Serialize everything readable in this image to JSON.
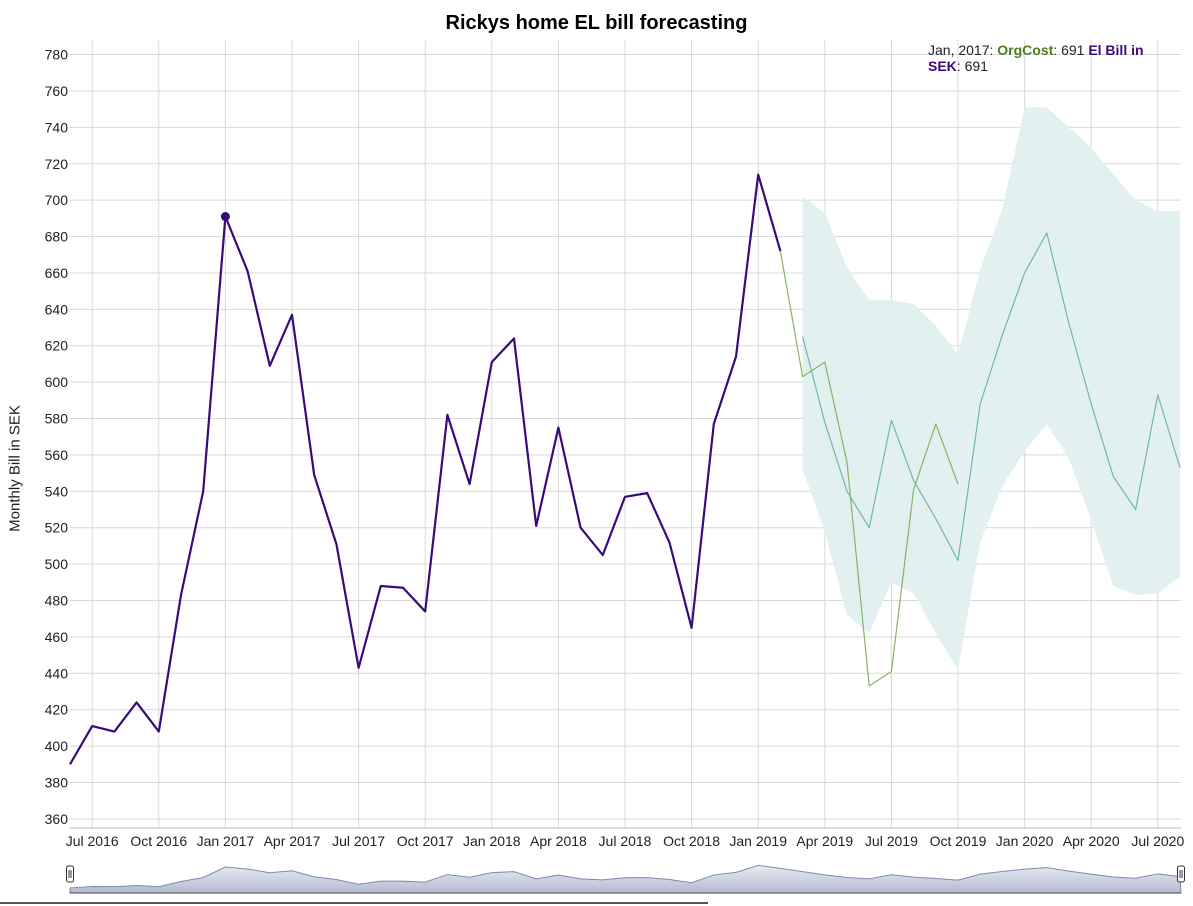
{
  "legend": {
    "date": "Jan, 2017",
    "series1_name": "OrgCost",
    "series1_value": "691",
    "series2_name": "El Bill in SEK",
    "series2_value": "691",
    "series2_name_line1": "El Bill in",
    "series2_name_line2": "SEK"
  },
  "colors": {
    "actual": "#3a0a7a",
    "orgcost": "#86b36a",
    "forecast": "#6fb7ae",
    "band": "#e2f1ef",
    "grid": "#d9d9d9",
    "navigator": "#a9b3c9"
  },
  "chart_data": {
    "type": "line",
    "title": "Rickys home EL bill forecasting",
    "xlabel": "",
    "ylabel": "Monthly Bill in SEK",
    "ylim": [
      355,
      788
    ],
    "y_ticks": [
      360,
      380,
      400,
      420,
      440,
      460,
      480,
      500,
      520,
      540,
      560,
      580,
      600,
      620,
      640,
      660,
      680,
      700,
      720,
      740,
      760,
      780
    ],
    "x_ticks": [
      "Jul 2016",
      "Oct 2016",
      "Jan 2017",
      "Apr 2017",
      "Jul 2017",
      "Oct 2017",
      "Jan 2018",
      "Apr 2018",
      "Jul 2018",
      "Oct 2018",
      "Jan 2019",
      "Apr 2019",
      "Jul 2019",
      "Oct 2019",
      "Jan 2020",
      "Apr 2020",
      "Jul 2020"
    ],
    "grid": true,
    "legend_position": "top-right",
    "highlight": {
      "x": "2017-01",
      "value": 691
    },
    "series": [
      {
        "name": "El Bill in SEK",
        "x": [
          "2016-06",
          "2016-07",
          "2016-08",
          "2016-09",
          "2016-10",
          "2016-11",
          "2016-12",
          "2017-01",
          "2017-02",
          "2017-03",
          "2017-04",
          "2017-05",
          "2017-06",
          "2017-07",
          "2017-08",
          "2017-09",
          "2017-10",
          "2017-11",
          "2017-12",
          "2018-01",
          "2018-02",
          "2018-03",
          "2018-04",
          "2018-05",
          "2018-06",
          "2018-07",
          "2018-08",
          "2018-09",
          "2018-10",
          "2018-11",
          "2018-12",
          "2019-01",
          "2019-02"
        ],
        "values": [
          390,
          411,
          408,
          424,
          408,
          483,
          540,
          691,
          661,
          609,
          637,
          549,
          511,
          443,
          488,
          487,
          474,
          582,
          544,
          611,
          624,
          521,
          575,
          520,
          505,
          537,
          539,
          512,
          465,
          577,
          614,
          714,
          672
        ]
      },
      {
        "name": "OrgCost",
        "x": [
          "2019-02",
          "2019-03",
          "2019-04",
          "2019-05",
          "2019-06",
          "2019-07",
          "2019-08",
          "2019-09",
          "2019-10"
        ],
        "values": [
          672,
          603,
          611,
          556,
          433,
          441,
          541,
          577,
          544
        ]
      },
      {
        "name": "",
        "x": [
          "2019-03",
          "2019-04",
          "2019-05",
          "2019-06",
          "2019-07",
          "2019-08",
          "2019-09",
          "2019-10",
          "2019-11",
          "2019-12",
          "2020-01",
          "2020-02",
          "2020-03",
          "2020-04",
          "2020-05",
          "2020-06",
          "2020-07",
          "2020-08"
        ],
        "values": [
          625,
          578,
          540,
          520,
          579,
          546,
          525,
          502,
          588,
          626,
          660,
          682,
          632,
          588,
          548,
          530,
          593,
          553
        ]
      }
    ],
    "band": {
      "x": [
        "2019-03",
        "2019-04",
        "2019-05",
        "2019-06",
        "2019-07",
        "2019-08",
        "2019-09",
        "2019-10",
        "2019-11",
        "2019-12",
        "2020-01",
        "2020-02",
        "2020-03",
        "2020-04",
        "2020-05",
        "2020-06",
        "2020-07",
        "2020-08"
      ],
      "upper": [
        702,
        693,
        663,
        645,
        645,
        643,
        631,
        615,
        662,
        695,
        751,
        751,
        740,
        729,
        714,
        700,
        694,
        694
      ],
      "lower": [
        552,
        518,
        472,
        462,
        490,
        484,
        462,
        442,
        512,
        543,
        562,
        577,
        558,
        524,
        488,
        483,
        484,
        493
      ]
    }
  }
}
